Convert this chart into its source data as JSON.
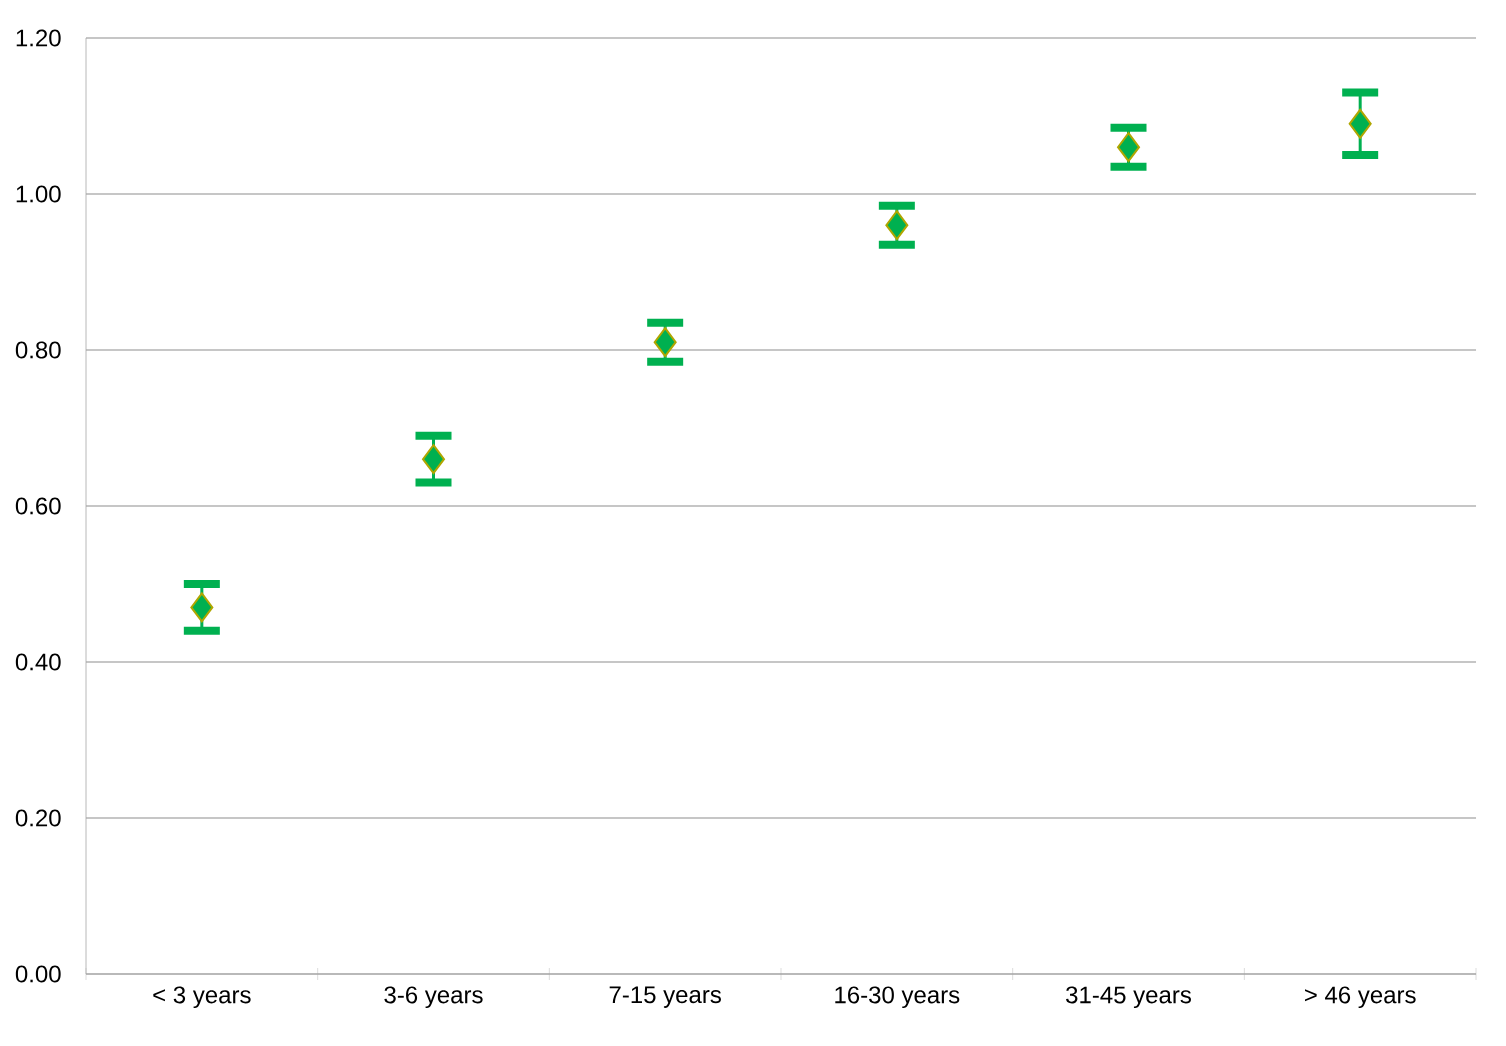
{
  "chart_data": {
    "type": "scatter",
    "categories": [
      "< 3 years",
      "3-6 years",
      "7-15 years",
      "16-30 years",
      "31-45 years",
      "> 46 years"
    ],
    "series": [
      {
        "color": "#00b050",
        "values": [
          0.47,
          0.66,
          0.81,
          0.96,
          1.06,
          1.09
        ],
        "errors": [
          0.03,
          0.03,
          0.025,
          0.025,
          0.025,
          0.04
        ]
      }
    ],
    "marker": "diamond",
    "ylim": [
      0,
      1.2
    ],
    "yticks": [
      {
        "value": 0,
        "label": "0.00"
      },
      {
        "value": 0.2,
        "label": "0.20"
      },
      {
        "value": 0.4,
        "label": "0.40"
      },
      {
        "value": 0.6,
        "label": "0.60"
      },
      {
        "value": 0.8,
        "label": "0.80"
      },
      {
        "value": 1.0,
        "label": "1.00"
      },
      {
        "value": 1.2,
        "label": "1.20"
      }
    ],
    "grid": "y"
  }
}
